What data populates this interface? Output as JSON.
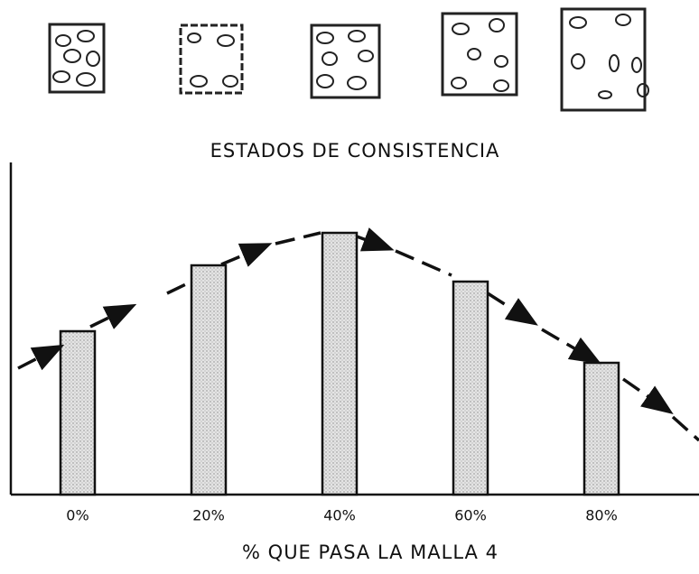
{
  "chart_data": {
    "type": "bar",
    "title": "ESTADOS DE CONSISTENCIA",
    "x_label": "% QUE PASA LA MALLA 4",
    "categories": [
      "0%",
      "20%",
      "40%",
      "60%",
      "80%"
    ],
    "values": [
      181,
      254,
      290,
      236,
      146
    ],
    "color": "#d8d8d8",
    "ylim": [
      0,
      368
    ]
  }
}
